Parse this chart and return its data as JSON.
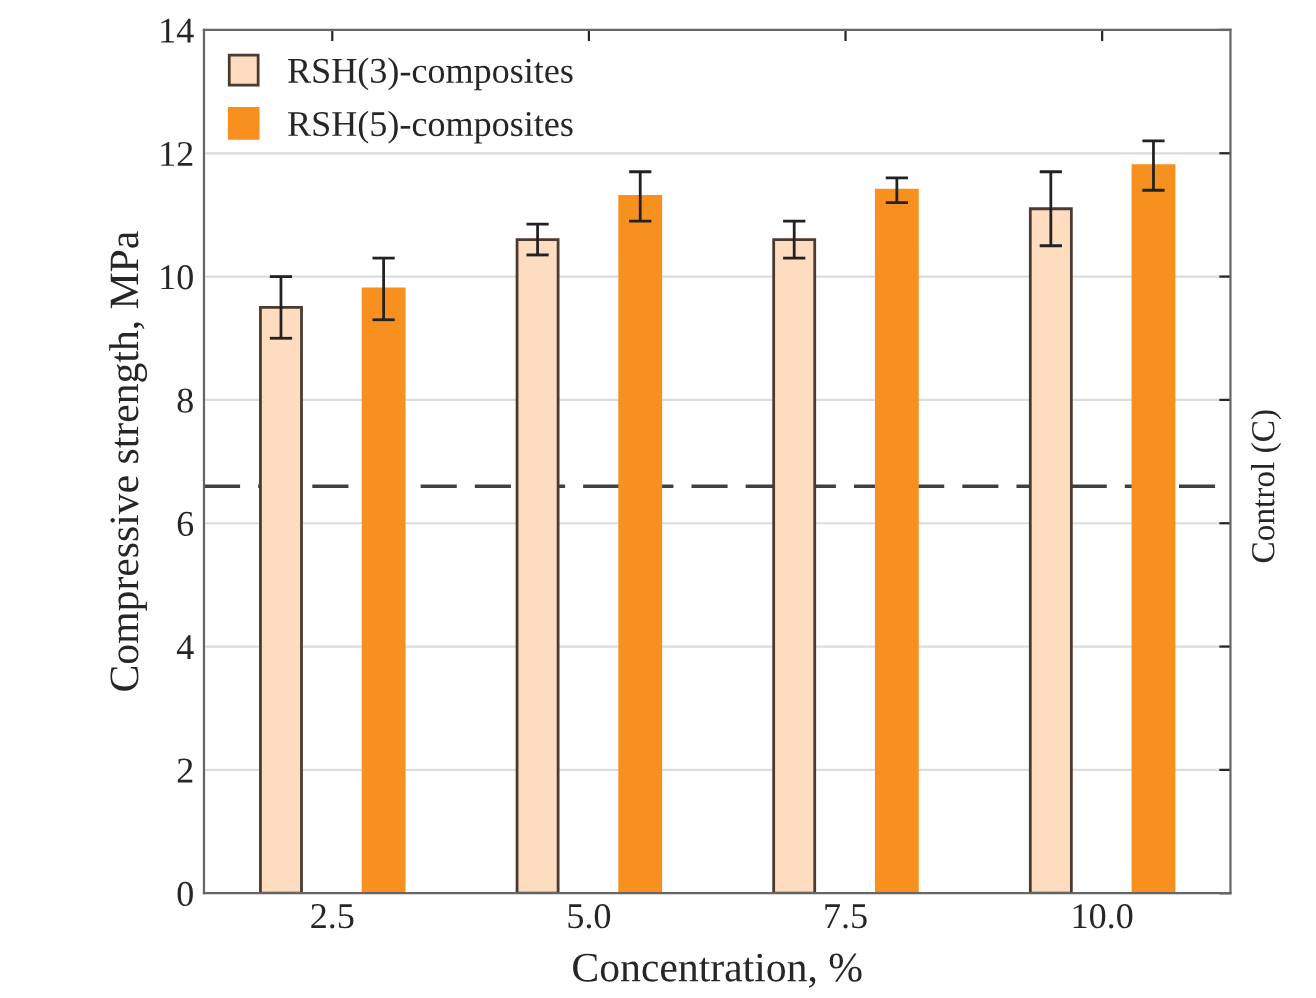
{
  "chart_data": {
    "type": "bar",
    "xlabel": "Concentration, %",
    "ylabel": "Compressive strength, MPa",
    "categories": [
      "2.5",
      "5.0",
      "7.5",
      "10.0"
    ],
    "series": [
      {
        "name": "RSH(3)-composites",
        "color": "#fddcc0",
        "values": [
          9.5,
          10.6,
          10.6,
          11.1
        ],
        "errors": [
          0.5,
          0.25,
          0.3,
          0.6
        ]
      },
      {
        "name": "RSH(5)-composites",
        "color": "#f7901e",
        "values": [
          9.8,
          11.3,
          11.4,
          11.8
        ],
        "errors": [
          0.5,
          0.4,
          0.2,
          0.4
        ]
      }
    ],
    "ylim": [
      0,
      14
    ],
    "yticks": [
      0,
      2,
      4,
      6,
      8,
      10,
      12,
      14
    ],
    "grid": "y",
    "legend": "top left",
    "ref_lines": [
      {
        "axis": "y",
        "value": 6.6,
        "label": "Control (C)",
        "color": "#404040",
        "line_style": "dashed"
      }
    ]
  }
}
